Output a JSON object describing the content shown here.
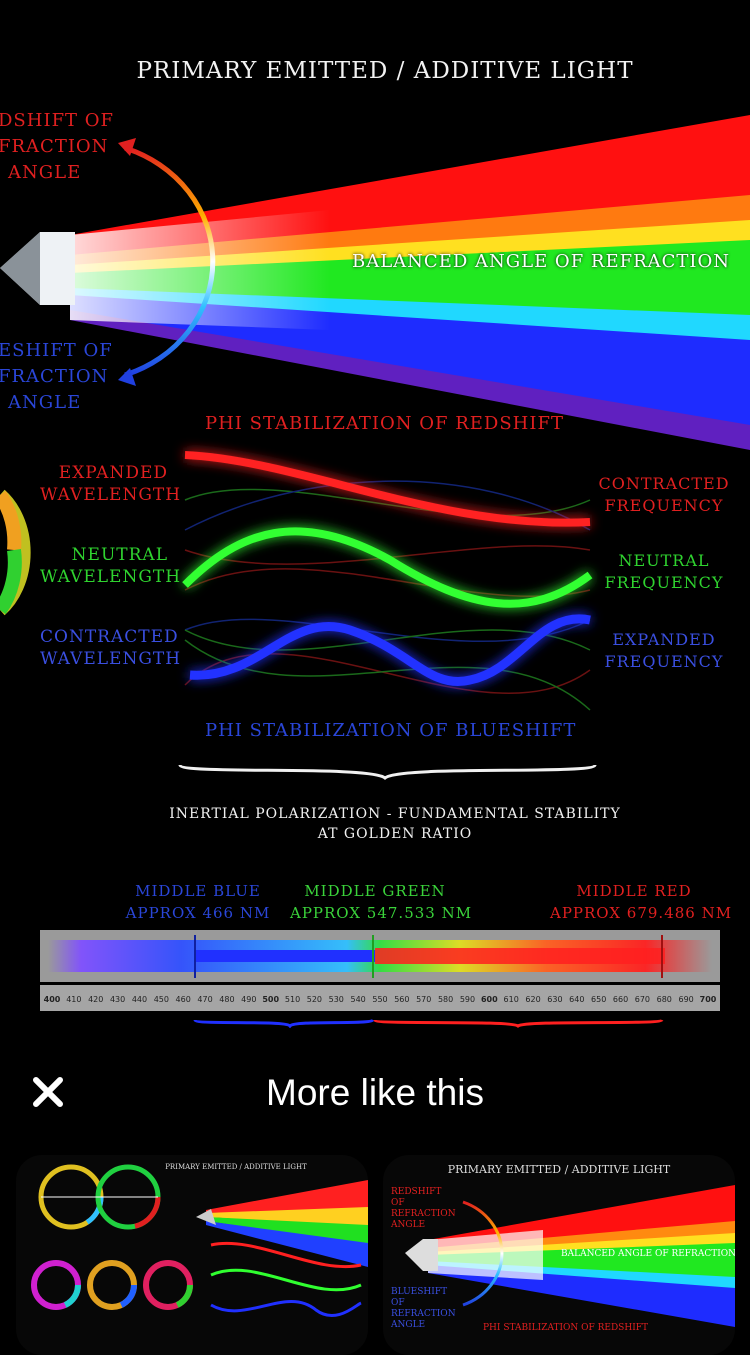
{
  "image": {
    "title": "PRIMARY EMITTED / ADDITIVE LIGHT",
    "redshift_label": [
      "DSHIFT OF",
      "FRACTION",
      "ANGLE"
    ],
    "blueshift_label": [
      "ESHIFT OF",
      "FRACTION",
      "ANGLE"
    ],
    "balanced_label": "BALANCED ANGLE OF REFRACTION",
    "phi_red": "PHI STABILIZATION OF REDSHIFT",
    "phi_blue": "PHI STABILIZATION OF BLUESHIFT",
    "left_labels": [
      {
        "line1": "EXPANDED",
        "line2": "WAVELENGTH",
        "color": "#e02020"
      },
      {
        "line1": "NEUTRAL",
        "line2": "WAVELENGTH",
        "color": "#2fd32f"
      },
      {
        "line1": "CONTRACTED",
        "line2": "WAVELENGTH",
        "color": "#3a4fe0"
      }
    ],
    "right_labels": [
      {
        "line1": "CONTRACTED",
        "line2": "FREQUENCY",
        "color": "#e02020"
      },
      {
        "line1": "NEUTRAL",
        "line2": "FREQUENCY",
        "color": "#2fd32f"
      },
      {
        "line1": "EXPANDED",
        "line2": "FREQUENCY",
        "color": "#3a4fe0"
      }
    ],
    "inertial_line1": "INERTIAL POLARIZATION - FUNDAMENTAL STABILITY",
    "inertial_line2": "AT GOLDEN RATIO",
    "middle_blue": {
      "line1": "MIDDLE BLUE",
      "line2": "APPROX 466 NM",
      "color": "#2a46d8"
    },
    "middle_green": {
      "line1": "MIDDLE GREEN",
      "line2": "APPROX 547.533 NM",
      "color": "#3ad23a"
    },
    "middle_red": {
      "line1": "MIDDLE RED",
      "line2": "APPROX 679.486 NM",
      "color": "#e02020"
    },
    "scale_ticks": [
      "400",
      "410",
      "420",
      "430",
      "440",
      "450",
      "460",
      "470",
      "480",
      "490",
      "500",
      "510",
      "520",
      "530",
      "540",
      "550",
      "560",
      "570",
      "580",
      "590",
      "600",
      "610",
      "620",
      "630",
      "640",
      "650",
      "660",
      "670",
      "680",
      "690",
      "700"
    ]
  },
  "sheet": {
    "title": "More like this",
    "close_icon": "close-icon"
  },
  "thumbs": [
    {
      "title": "PRIMARY EMITTED / ADDITIVE LIGHT"
    },
    {
      "title": "PRIMARY EMITTED / ADDITIVE LIGHT",
      "redshift": "REDSHIFT OF REFRACTION ANGLE",
      "balanced": "BALANCED ANGLE OF REFRACTION",
      "blueshift": "BLUESHIFT OF REFRACTION ANGLE",
      "phi": "PHI STABILIZATION OF REDSHIFT"
    }
  ]
}
